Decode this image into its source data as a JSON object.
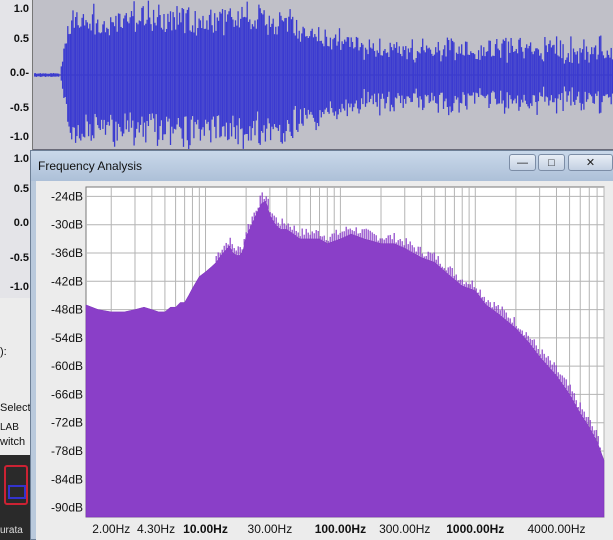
{
  "waveform": {
    "top_ruler_labels": [
      "1.0",
      "0.5",
      "0.0-",
      "-0.5",
      "-1.0"
    ],
    "second_ruler_labels": [
      "1.0",
      "0.5",
      "0.0",
      "-0.5",
      "-1.0"
    ],
    "color": "#3a3ad0"
  },
  "background": {
    "left_texts": [
      "):",
      "Select",
      "LAB",
      "witch",
      "urata"
    ]
  },
  "window": {
    "title": "Frequency Analysis",
    "minimize_glyph": "—",
    "maximize_glyph": "□",
    "close_glyph": "✕"
  },
  "chart_data": {
    "type": "area",
    "title": "",
    "xlabel": "",
    "ylabel": "",
    "x_scale": "log",
    "xlim": [
      1.3,
      9000
    ],
    "ylim": [
      -92,
      -22
    ],
    "y_ticks": [
      "-24dB",
      "-30dB",
      "-36dB",
      "-42dB",
      "-48dB",
      "-54dB",
      "-60dB",
      "-66dB",
      "-72dB",
      "-78dB",
      "-84dB",
      "-90dB"
    ],
    "y_tick_values": [
      -24,
      -30,
      -36,
      -42,
      -48,
      -54,
      -60,
      -66,
      -72,
      -78,
      -84,
      -90
    ],
    "x_ticks": [
      {
        "label": "2.00Hz",
        "value": 2,
        "major": false
      },
      {
        "label": "4.30Hz",
        "value": 4.3,
        "major": false
      },
      {
        "label": "10.00Hz",
        "value": 10,
        "major": true
      },
      {
        "label": "30.00Hz",
        "value": 30,
        "major": false
      },
      {
        "label": "100.00Hz",
        "value": 100,
        "major": true
      },
      {
        "label": "300.00Hz",
        "value": 300,
        "major": false
      },
      {
        "label": "1000.00Hz",
        "value": 1000,
        "major": true
      },
      {
        "label": "4000.00Hz",
        "value": 4000,
        "major": false
      }
    ],
    "grid": true,
    "fill_color": "#8a3fc8",
    "series": [
      {
        "x": [
          1.3,
          1.6,
          2.0,
          2.5,
          3.0,
          3.5,
          4.0,
          4.5,
          5.0,
          5.5,
          6.0,
          6.5,
          7.0,
          7.5,
          8.0,
          9.0,
          10.0,
          11.0,
          12.0,
          13.0,
          14.0,
          15.0,
          16.0,
          17.0,
          18.0,
          19.0,
          20.0,
          22.0,
          24.0,
          26.0,
          28.0,
          30.0,
          33.0,
          36.0,
          40.0,
          45.0,
          50.0,
          60.0,
          70.0,
          80.0,
          100.0,
          120.0,
          150.0,
          200.0,
          250.0,
          300.0,
          400.0,
          500.0,
          600.0,
          800.0,
          1000.0,
          1200.0,
          1500.0,
          2000.0,
          2500.0,
          3000.0,
          4000.0,
          5000.0,
          6000.0,
          7000.0,
          8000.0,
          9000.0
        ],
        "values": [
          -47,
          -48,
          -48.5,
          -48.5,
          -48,
          -47.5,
          -48,
          -48.5,
          -48.5,
          -47.5,
          -47.5,
          -46.5,
          -46.5,
          -45,
          -43.5,
          -41,
          -40,
          -39,
          -38,
          -36.5,
          -35.5,
          -34.5,
          -36,
          -36.5,
          -36.5,
          -35.5,
          -32.5,
          -30,
          -27.5,
          -25.5,
          -25,
          -28,
          -30,
          -31,
          -31,
          -32,
          -33,
          -33,
          -33,
          -34,
          -33,
          -32,
          -33,
          -34,
          -34,
          -35,
          -37,
          -38,
          -40,
          -43,
          -44,
          -47,
          -49,
          -52,
          -55,
          -58,
          -62,
          -66,
          -70,
          -73,
          -76,
          -80
        ]
      }
    ]
  }
}
